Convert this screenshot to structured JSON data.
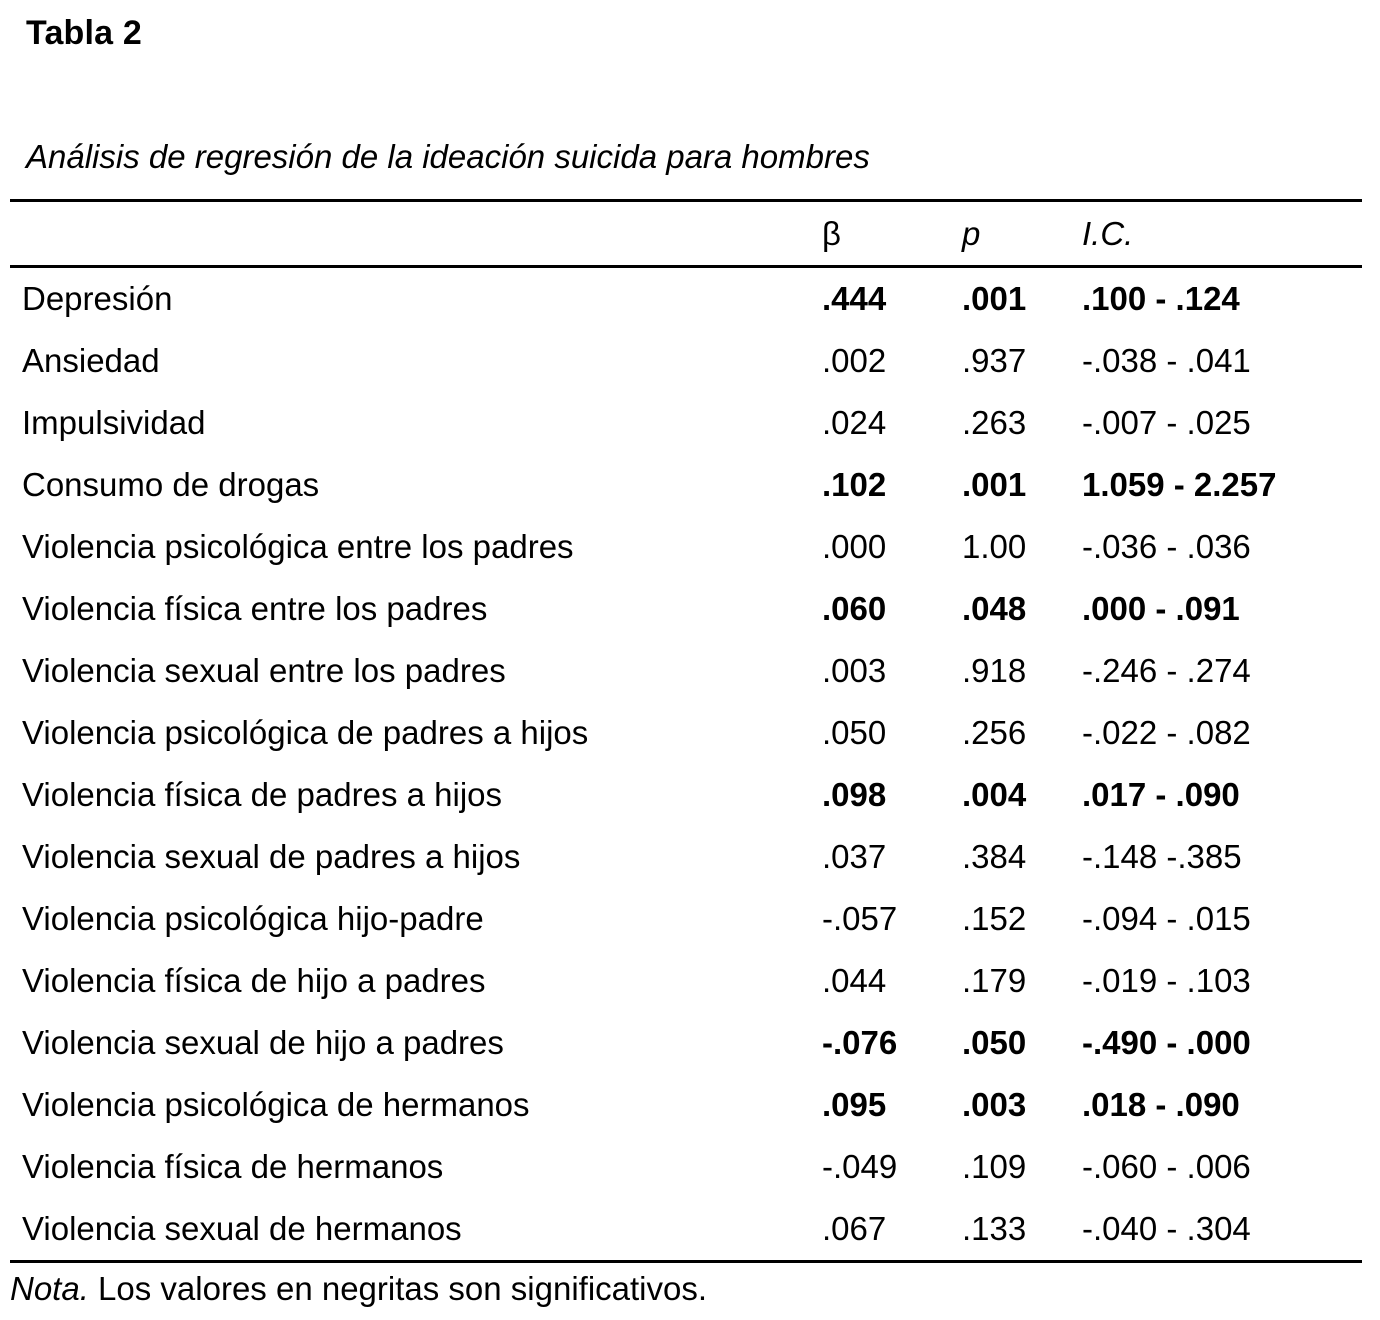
{
  "table": {
    "title": "Tabla 2",
    "caption": "Análisis de regresión de la ideación suicida para hombres",
    "headers": {
      "variable": "",
      "beta": "β",
      "p": "p",
      "ic": "I.C."
    },
    "rows": [
      {
        "label": "Depresión",
        "beta": ".444",
        "p": ".001",
        "ic": ".100 - .124",
        "significant": true
      },
      {
        "label": "Ansiedad",
        "beta": ".002",
        "p": ".937",
        "ic": "-.038 - .041",
        "significant": false
      },
      {
        "label": "Impulsividad",
        "beta": ".024",
        "p": ".263",
        "ic": "-.007 - .025",
        "significant": false
      },
      {
        "label": "Consumo de drogas",
        "beta": ".102",
        "p": ".001",
        "ic": "1.059 - 2.257",
        "significant": true
      },
      {
        "label": "Violencia psicológica entre los padres",
        "beta": ".000",
        "p": "1.00",
        "ic": "-.036 - .036",
        "significant": false
      },
      {
        "label": "Violencia física entre los padres",
        "beta": ".060",
        "p": ".048",
        "ic": ".000 - .091",
        "significant": true
      },
      {
        "label": "Violencia sexual entre los padres",
        "beta": ".003",
        "p": ".918",
        "ic": "-.246 - .274",
        "significant": false
      },
      {
        "label": "Violencia psicológica de padres a hijos",
        "beta": ".050",
        "p": ".256",
        "ic": "-.022 - .082",
        "significant": false
      },
      {
        "label": "Violencia física de padres a hijos",
        "beta": ".098",
        "p": ".004",
        "ic": ".017 - .090",
        "significant": true
      },
      {
        "label": "Violencia sexual de padres a hijos",
        "beta": ".037",
        "p": ".384",
        "ic": "-.148 -.385",
        "significant": false
      },
      {
        "label": "Violencia psicológica hijo-padre",
        "beta": "-.057",
        "p": ".152",
        "ic": "-.094 - .015",
        "significant": false
      },
      {
        "label": "Violencia física de hijo a padres",
        "beta": ".044",
        "p": ".179",
        "ic": "-.019 - .103",
        "significant": false
      },
      {
        "label": "Violencia sexual de hijo a padres",
        "beta": "-.076",
        "p": ".050",
        "ic": "-.490 - .000",
        "significant": true
      },
      {
        "label": "Violencia psicológica de hermanos",
        "beta": ".095",
        "p": ".003",
        "ic": ".018 - .090",
        "significant": true
      },
      {
        "label": "Violencia física de hermanos",
        "beta": "-.049",
        "p": ".109",
        "ic": "-.060 - .006",
        "significant": false
      },
      {
        "label": "Violencia sexual de hermanos",
        "beta": ".067",
        "p": ".133",
        "ic": "-.040 - .304",
        "significant": false
      }
    ],
    "note_label": "Nota.",
    "note_text": " Los valores en negritas son significativos."
  }
}
